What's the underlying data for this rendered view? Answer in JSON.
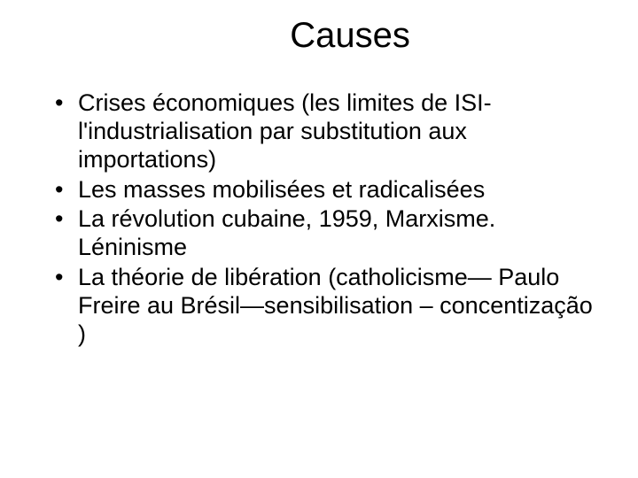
{
  "title": "Causes",
  "bullets": [
    "Crises économiques (les limites de ISI-l'industrialisation par substitution aux importations)",
    "Les masses mobilisées et radicalisées",
    "La révolution cubaine, 1959, Marxisme. Léninisme",
    "La théorie de libération (catholicisme— Paulo Freire au Brésil—sensibilisation – concentização )"
  ],
  "colors": {
    "background": "#ffffff",
    "text": "#000000"
  },
  "typography": {
    "title_fontsize": 40,
    "body_fontsize": 27,
    "font_family": "Arial"
  }
}
